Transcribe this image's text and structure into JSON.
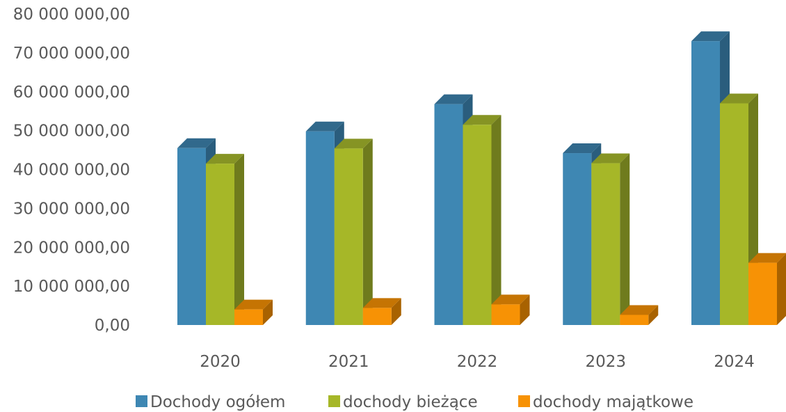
{
  "chart_data": {
    "type": "bar",
    "style": "3d-clustered-column",
    "categories": [
      "2020",
      "2021",
      "2022",
      "2023",
      "2024"
    ],
    "series": [
      {
        "name": "Dochody ogółem",
        "values": [
          45500000,
          49800000,
          56800000,
          44200000,
          73000000
        ]
      },
      {
        "name": "dochody bieżące",
        "values": [
          41500000,
          45400000,
          51500000,
          41600000,
          57000000
        ]
      },
      {
        "name": "dochody majątkowe",
        "values": [
          4000000,
          4400000,
          5300000,
          2600000,
          16000000
        ]
      }
    ],
    "colors": {
      "Dochody ogółem": {
        "front": "#3e87b3",
        "side": "#2a5d7d",
        "top": "#31698c"
      },
      "dochody bieżące": {
        "front": "#a6b728",
        "side": "#6f7b1d",
        "top": "#869424"
      },
      "dochody majątkowe": {
        "front": "#f79205",
        "side": "#a86200",
        "top": "#c57403"
      }
    },
    "ylim": [
      0,
      80000000
    ],
    "y_ticks": [
      "0,00",
      "10 000 000,00",
      "20 000 000,00",
      "30 000 000,00",
      "40 000 000,00",
      "50 000 000,00",
      "60 000 000,00",
      "70 000 000,00",
      "80 000 000,00"
    ],
    "y_tick_values": [
      0,
      10000000,
      20000000,
      30000000,
      40000000,
      50000000,
      60000000,
      70000000,
      80000000
    ],
    "grid": false,
    "legend_position": "bottom",
    "title": "",
    "xlabel": "",
    "ylabel": ""
  }
}
